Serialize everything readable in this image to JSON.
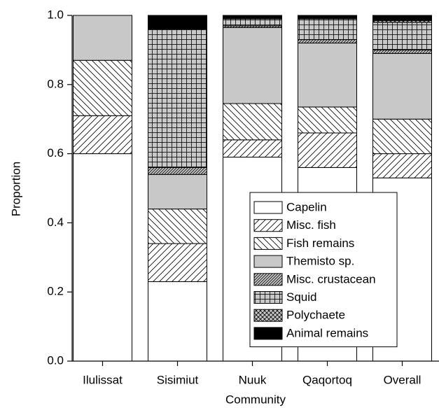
{
  "chart_data": {
    "type": "stacked_bar",
    "x_label": "Community",
    "y_label": "Proportion",
    "categories": [
      "Ilulissat",
      "Sisimiut",
      "Nuuk",
      "Qaqortoq",
      "Overall"
    ],
    "ylim": [
      0,
      1
    ],
    "yticks": [
      {
        "value": 0,
        "label": "0.0"
      },
      0.2,
      0.4,
      0.6,
      0.8,
      {
        "value": 1,
        "label": "1.0"
      }
    ],
    "legend_position": "lower right",
    "series": [
      {
        "name": "Capelin",
        "color": "#ffffff",
        "hatch": "none",
        "values": [
          0.6,
          0.23,
          0.59,
          0.56,
          0.53
        ]
      },
      {
        "name": "Misc. fish",
        "color": "#ffffff",
        "hatch": "forward",
        "values": [
          0.11,
          0.11,
          0.05,
          0.1,
          0.07
        ]
      },
      {
        "name": "Fish remains",
        "color": "#ffffff",
        "hatch": "back",
        "values": [
          0.16,
          0.1,
          0.105,
          0.075,
          0.1
        ]
      },
      {
        "name": "Themisto sp.",
        "color": "#c8c8c8",
        "hatch": "none",
        "values": [
          0.13,
          0.1,
          0.22,
          0.185,
          0.19
        ]
      },
      {
        "name": "Misc. crustacean",
        "color": "#c8c8c8",
        "hatch": "dense-forward",
        "values": [
          0,
          0.02,
          0.005,
          0.01,
          0.01
        ]
      },
      {
        "name": "Squid",
        "color": "#c8c8c8",
        "hatch": "grid",
        "values": [
          0,
          0.4,
          0.02,
          0.06,
          0.08
        ]
      },
      {
        "name": "Polychaete",
        "color": "#c8c8c8",
        "hatch": "cross",
        "values": [
          0,
          0,
          0,
          0,
          0.005
        ]
      },
      {
        "name": "Animal remains",
        "color": "#000000",
        "hatch": "none",
        "values": [
          0,
          0.04,
          0.01,
          0.01,
          0.015
        ]
      }
    ]
  }
}
